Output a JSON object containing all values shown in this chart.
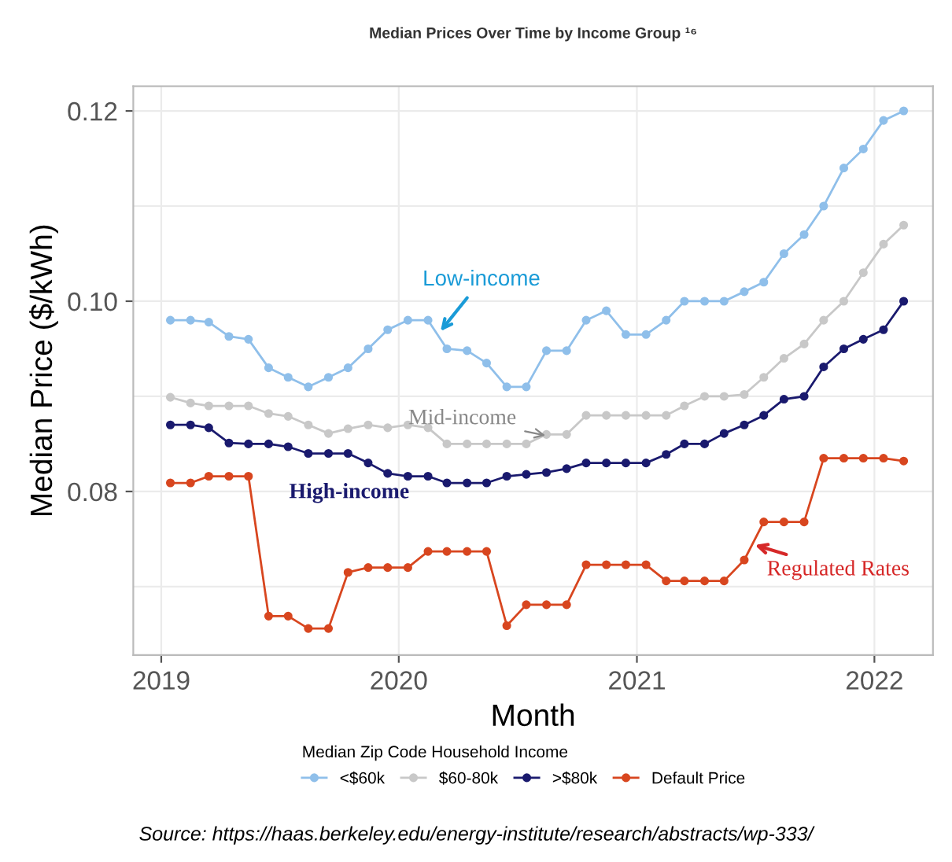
{
  "chart_data": {
    "type": "line",
    "title": "Median Prices Over Time by Income Group ¹⁶",
    "xlabel": "Month",
    "ylabel": "Median Price ($/kWh)",
    "legend_title": "Median Zip Code Household Income",
    "x": [
      "2019-01-15",
      "2019-02-15",
      "2019-03-15",
      "2019-04-15",
      "2019-05-15",
      "2019-06-15",
      "2019-07-15",
      "2019-08-15",
      "2019-09-15",
      "2019-10-15",
      "2019-11-15",
      "2019-12-15",
      "2020-01-15",
      "2020-02-15",
      "2020-03-15",
      "2020-04-15",
      "2020-05-15",
      "2020-06-15",
      "2020-07-15",
      "2020-08-15",
      "2020-09-15",
      "2020-10-15",
      "2020-11-15",
      "2020-12-15",
      "2021-01-15",
      "2021-02-15",
      "2021-03-15",
      "2021-04-15",
      "2021-05-15",
      "2021-06-15",
      "2021-07-15",
      "2021-08-15",
      "2021-09-15",
      "2021-10-15",
      "2021-11-15",
      "2021-12-15",
      "2022-01-15",
      "2022-02-15"
    ],
    "series": [
      {
        "name": "<$60k",
        "color": "#8fbfea",
        "values": [
          0.098,
          0.098,
          0.0978,
          0.0963,
          0.096,
          0.093,
          0.092,
          0.091,
          0.092,
          0.093,
          0.095,
          0.097,
          0.098,
          0.098,
          0.095,
          0.0948,
          0.0935,
          0.091,
          0.091,
          0.0948,
          0.0948,
          0.098,
          0.099,
          0.0965,
          0.0965,
          0.098,
          0.1,
          0.1,
          0.1,
          0.101,
          0.102,
          0.105,
          0.107,
          0.11,
          0.114,
          0.116,
          0.119,
          0.12
        ]
      },
      {
        "name": "$60-80k",
        "color": "#c8c8c8",
        "values": [
          0.0899,
          0.0893,
          0.089,
          0.089,
          0.089,
          0.0882,
          0.0879,
          0.087,
          0.0861,
          0.0866,
          0.087,
          0.0867,
          0.087,
          0.0867,
          0.085,
          0.085,
          0.085,
          0.085,
          0.085,
          0.086,
          0.086,
          0.088,
          0.088,
          0.088,
          0.088,
          0.088,
          0.089,
          0.09,
          0.09,
          0.0902,
          0.092,
          0.094,
          0.0955,
          0.098,
          0.1,
          0.103,
          0.106,
          0.108
        ]
      },
      {
        "name": ">$80k",
        "color": "#1a1a6e",
        "values": [
          0.087,
          0.087,
          0.0867,
          0.0851,
          0.085,
          0.085,
          0.0847,
          0.084,
          0.084,
          0.084,
          0.083,
          0.0819,
          0.0816,
          0.0816,
          0.0809,
          0.0809,
          0.0809,
          0.0816,
          0.0818,
          0.082,
          0.0824,
          0.083,
          0.083,
          0.083,
          0.083,
          0.0839,
          0.085,
          0.085,
          0.0861,
          0.087,
          0.088,
          0.0897,
          0.09,
          0.0931,
          0.095,
          0.096,
          0.097,
          0.1
        ]
      },
      {
        "name": "Default Price",
        "color": "#d8461f",
        "values": [
          0.0809,
          0.0809,
          0.0816,
          0.0816,
          0.0816,
          0.0669,
          0.0669,
          0.0656,
          0.0656,
          0.0715,
          0.072,
          0.072,
          0.072,
          0.0737,
          0.0737,
          0.0737,
          0.0737,
          0.0659,
          0.0681,
          0.0681,
          0.0681,
          0.0723,
          0.0723,
          0.0723,
          0.0723,
          0.0706,
          0.0706,
          0.0706,
          0.0706,
          0.0728,
          0.0768,
          0.0768,
          0.0768,
          0.0835,
          0.0835,
          0.0835,
          0.0835,
          0.0832
        ]
      }
    ],
    "xlim": [
      "2018-11-19",
      "2022-04-01"
    ],
    "xticks": [
      {
        "value": "2019-01-01",
        "label": "2019"
      },
      {
        "value": "2020-01-01",
        "label": "2020"
      },
      {
        "value": "2021-01-01",
        "label": "2021"
      },
      {
        "value": "2022-01-01",
        "label": "2022"
      }
    ],
    "ylim": [
      0.0628,
      0.1226
    ],
    "yticks": [
      {
        "value": 0.07,
        "label": null
      },
      {
        "value": 0.08,
        "label": "0.08"
      },
      {
        "value": 0.09,
        "label": null
      },
      {
        "value": 0.1,
        "label": "0.10"
      },
      {
        "value": 0.11,
        "label": null
      },
      {
        "value": 0.12,
        "label": "0.12"
      }
    ],
    "grid": true,
    "legend": "bottom",
    "marker": "circle",
    "line_style": "solid",
    "annotations": [
      {
        "text": "Low-income",
        "x": "2020-03-01",
        "y": 0.0965
      },
      {
        "text": "Mid-income",
        "x": "2020-08-20",
        "y": 0.0858
      },
      "High-income",
      {
        "text": "Regulated Rates",
        "x": "2021-06-25",
        "y": 0.0745
      },
      "Source: https://haas.berkeley.edu/energy-institute/research/abstracts/wp-333/"
    ]
  }
}
